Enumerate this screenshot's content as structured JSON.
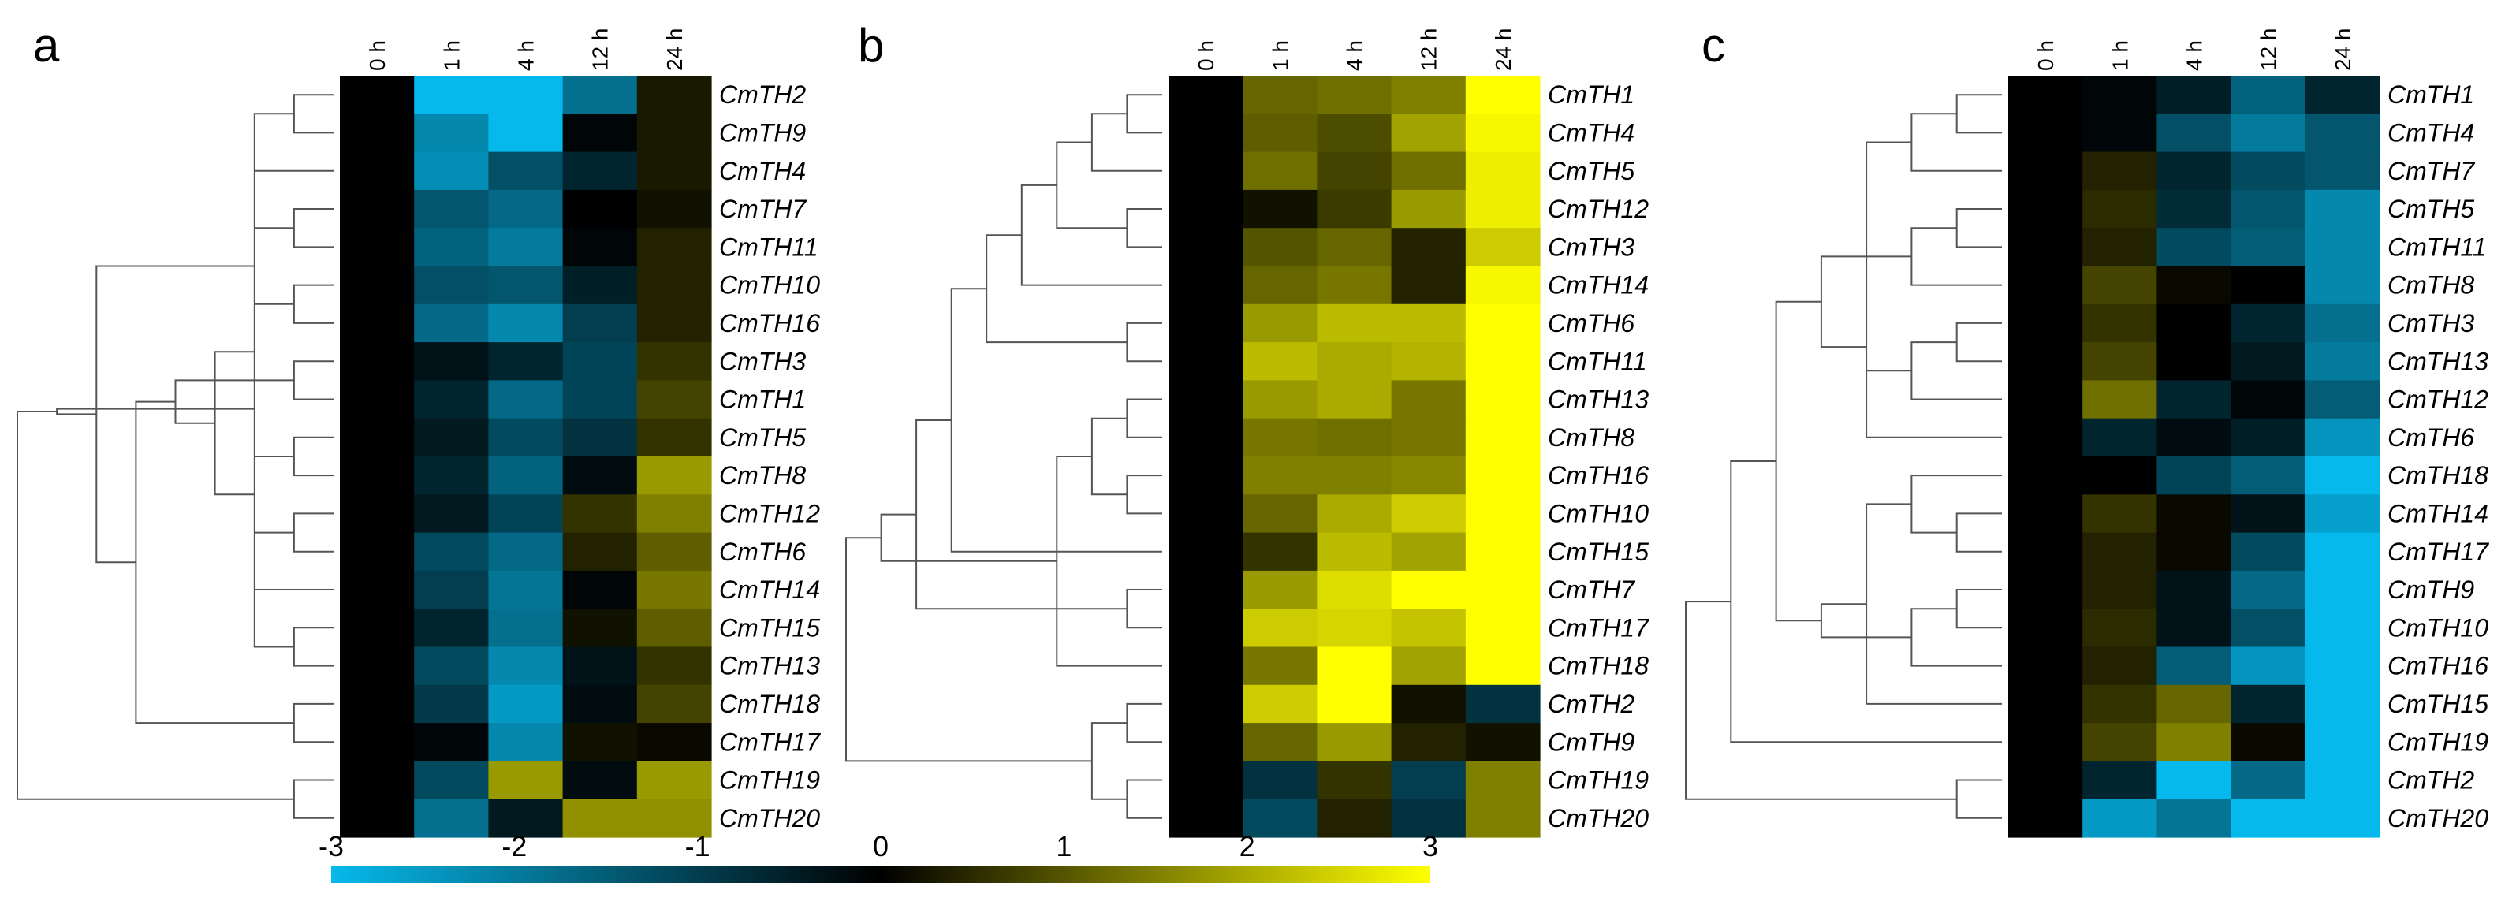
{
  "chart_data": {
    "type": "heatmap",
    "colorscale": {
      "min": -3,
      "max": 3,
      "colors": [
        "#06B9EC",
        "#000000",
        "#FFFF00"
      ],
      "ticks": [
        "-3",
        "-2",
        "-1",
        "0",
        "1",
        "2",
        "3"
      ]
    },
    "panels": [
      {
        "letter": "a",
        "columns": [
          "0 h",
          "1 h",
          "4 h",
          "12 h",
          "24 h"
        ],
        "rows": [
          "CmTH2",
          "CmTH9",
          "CmTH4",
          "CmTH7",
          "CmTH11",
          "CmTH10",
          "CmTH16",
          "CmTH3",
          "CmTH1",
          "CmTH5",
          "CmTH8",
          "CmTH12",
          "CmTH6",
          "CmTH14",
          "CmTH15",
          "CmTH13",
          "CmTH18",
          "CmTH17",
          "CmTH19",
          "CmTH20"
        ],
        "values": [
          [
            0,
            -3,
            -3,
            -1.8,
            0.3
          ],
          [
            0,
            -2.2,
            -3,
            -0.1,
            0.3
          ],
          [
            0,
            -2.3,
            -1.3,
            -0.6,
            0.3
          ],
          [
            0,
            -1.4,
            -1.7,
            0,
            0.2
          ],
          [
            0,
            -1.6,
            -2,
            -0.1,
            0.4
          ],
          [
            0,
            -1.3,
            -1.4,
            -0.5,
            0.4
          ],
          [
            0,
            -1.7,
            -2.2,
            -1,
            0.4
          ],
          [
            0,
            -0.3,
            -0.6,
            -1.1,
            0.6
          ],
          [
            0,
            -0.6,
            -1.7,
            -1.1,
            0.8
          ],
          [
            0,
            -0.4,
            -1.2,
            -0.8,
            0.6
          ],
          [
            0,
            -0.6,
            -1.6,
            -0.2,
            1.8
          ],
          [
            0,
            -0.4,
            -1.1,
            0.6,
            1.5
          ],
          [
            0,
            -1.2,
            -1.7,
            0.4,
            1.1
          ],
          [
            0,
            -1,
            -1.9,
            -0.1,
            1.4
          ],
          [
            0,
            -0.6,
            -1.8,
            0.2,
            1.1
          ],
          [
            0,
            -1.2,
            -2.2,
            -0.3,
            0.6
          ],
          [
            0,
            -0.9,
            -2.5,
            -0.2,
            0.8
          ],
          [
            0,
            -0.1,
            -2.2,
            0.2,
            0.1
          ],
          [
            0,
            -1.2,
            1.8,
            -0.2,
            1.8
          ],
          [
            0,
            -1.8,
            -0.4,
            1.7,
            1.7
          ]
        ],
        "row_tree": [
          [
            1,
            2
          ],
          [
            16,
            15
          ],
          [
            4,
            5
          ],
          [
            6,
            7
          ],
          [
            8,
            9
          ],
          [
            10,
            11
          ],
          [
            12,
            13
          ],
          [
            14,
            -1
          ],
          [
            3,
            -2
          ],
          [
            -3,
            -4
          ],
          [
            -6,
            -7
          ],
          [
            -8,
            -11
          ],
          [
            -5,
            -12
          ],
          [
            17,
            18
          ],
          [
            -13,
            -14
          ],
          [
            -10,
            -15
          ],
          [
            -9,
            -16
          ],
          [
            19,
            20
          ],
          [
            -17,
            -18
          ]
        ]
      },
      {
        "letter": "b",
        "columns": [
          "0 h",
          "1 h",
          "4 h",
          "12 h",
          "24 h"
        ],
        "rows": [
          "CmTH1",
          "CmTH4",
          "CmTH5",
          "CmTH12",
          "CmTH3",
          "CmTH14",
          "CmTH6",
          "CmTH11",
          "CmTH13",
          "CmTH8",
          "CmTH16",
          "CmTH10",
          "CmTH15",
          "CmTH7",
          "CmTH17",
          "CmTH18",
          "CmTH2",
          "CmTH9",
          "CmTH19",
          "CmTH20"
        ],
        "values": [
          [
            0,
            1.2,
            1.3,
            1.5,
            3
          ],
          [
            0,
            1.1,
            0.9,
            1.9,
            2.9
          ],
          [
            0,
            1.3,
            0.8,
            1.3,
            2.8
          ],
          [
            0,
            0.2,
            0.7,
            1.8,
            2.8
          ],
          [
            0,
            1,
            1.2,
            0.4,
            2.4
          ],
          [
            0,
            1.2,
            1.4,
            0.4,
            2.9
          ],
          [
            0,
            1.8,
            2.2,
            2.2,
            3
          ],
          [
            0,
            2.2,
            2,
            2.1,
            3
          ],
          [
            0,
            1.8,
            2,
            1.4,
            3
          ],
          [
            0,
            1.4,
            1.3,
            1.4,
            3
          ],
          [
            0,
            1.5,
            1.5,
            1.6,
            3
          ],
          [
            0,
            1.2,
            2,
            2.4,
            3
          ],
          [
            0,
            0.6,
            2.2,
            1.9,
            3
          ],
          [
            0,
            1.8,
            2.6,
            3,
            3
          ],
          [
            0,
            2.4,
            2.5,
            2.3,
            3
          ],
          [
            0,
            1.4,
            3,
            1.9,
            3
          ],
          [
            0,
            2.4,
            3,
            0.2,
            -0.8
          ],
          [
            0,
            1.2,
            1.8,
            0.4,
            0.2
          ],
          [
            0,
            -0.8,
            0.6,
            -1,
            1.5
          ],
          [
            0,
            -1.2,
            0.4,
            -0.8,
            1.5
          ]
        ],
        "row_tree": [
          [
            1,
            2
          ],
          [
            4,
            5
          ],
          [
            3,
            -1
          ],
          [
            -2,
            -3
          ],
          [
            6,
            -4
          ],
          [
            7,
            8
          ],
          [
            9,
            10
          ],
          [
            -5,
            -6
          ],
          [
            11,
            12
          ],
          [
            -8,
            13
          ],
          [
            -7,
            -9
          ],
          [
            14,
            15
          ],
          [
            -11,
            16
          ],
          [
            -10,
            -12
          ],
          [
            -13,
            -14
          ],
          [
            19,
            20
          ],
          [
            17,
            18
          ],
          [
            -16,
            -17
          ],
          [
            -15,
            -18
          ]
        ]
      },
      {
        "letter": "c",
        "columns": [
          "0 h",
          "1 h",
          "4 h",
          "12 h",
          "24 h"
        ],
        "rows": [
          "CmTH1",
          "CmTH4",
          "CmTH7",
          "CmTH5",
          "CmTH11",
          "CmTH8",
          "CmTH3",
          "CmTH13",
          "CmTH12",
          "CmTH6",
          "CmTH18",
          "CmTH14",
          "CmTH17",
          "CmTH9",
          "CmTH10",
          "CmTH16",
          "CmTH15",
          "CmTH19",
          "CmTH2",
          "CmTH20"
        ],
        "values": [
          [
            0,
            -0.1,
            -0.5,
            -1.6,
            -0.6
          ],
          [
            0,
            -0.1,
            -1.3,
            -2,
            -1.4
          ],
          [
            0,
            0.4,
            -0.6,
            -1.2,
            -1.4
          ],
          [
            0,
            0.5,
            -0.7,
            -1.4,
            -2.2
          ],
          [
            0,
            0.4,
            -1.2,
            -1.5,
            -2.2
          ],
          [
            0,
            0.8,
            0.1,
            0,
            -2.2
          ],
          [
            0,
            0.6,
            0,
            -0.6,
            -1.8
          ],
          [
            0,
            0.8,
            0,
            -0.4,
            -2
          ],
          [
            0,
            1.3,
            -0.6,
            -0.1,
            -1.5
          ],
          [
            0,
            -0.6,
            -0.2,
            -0.5,
            -2.4
          ],
          [
            0,
            0,
            -1.1,
            -1.5,
            -3
          ],
          [
            0,
            0.6,
            0.1,
            -0.3,
            -2.6
          ],
          [
            0,
            0.4,
            0.1,
            -1.2,
            -3
          ],
          [
            0,
            0.4,
            -0.3,
            -1.7,
            -3
          ],
          [
            0,
            0.5,
            -0.3,
            -1.3,
            -3
          ],
          [
            0,
            0.4,
            -1.5,
            -2.4,
            -3
          ],
          [
            0,
            0.6,
            1.2,
            -0.6,
            -3
          ],
          [
            0,
            0.8,
            1.5,
            0.1,
            -3
          ],
          [
            0,
            -0.6,
            -3,
            -1.7,
            -3
          ],
          [
            0,
            -2.5,
            -1.9,
            -3,
            -3
          ]
        ],
        "row_tree": [
          [
            1,
            2
          ],
          [
            4,
            5
          ],
          [
            -1,
            3
          ],
          [
            7,
            8
          ],
          [
            -2,
            6
          ],
          [
            -4,
            9
          ],
          [
            -5,
            10
          ],
          [
            -3,
            -6
          ],
          [
            -7,
            -8
          ],
          [
            12,
            13
          ],
          [
            11,
            -10
          ],
          [
            14,
            15
          ],
          [
            16,
            -12
          ],
          [
            -11,
            17
          ],
          [
            -13,
            -14
          ],
          [
            -9,
            -15
          ],
          [
            -16,
            18
          ],
          [
            19,
            20
          ],
          [
            -17,
            -18
          ]
        ]
      }
    ]
  }
}
